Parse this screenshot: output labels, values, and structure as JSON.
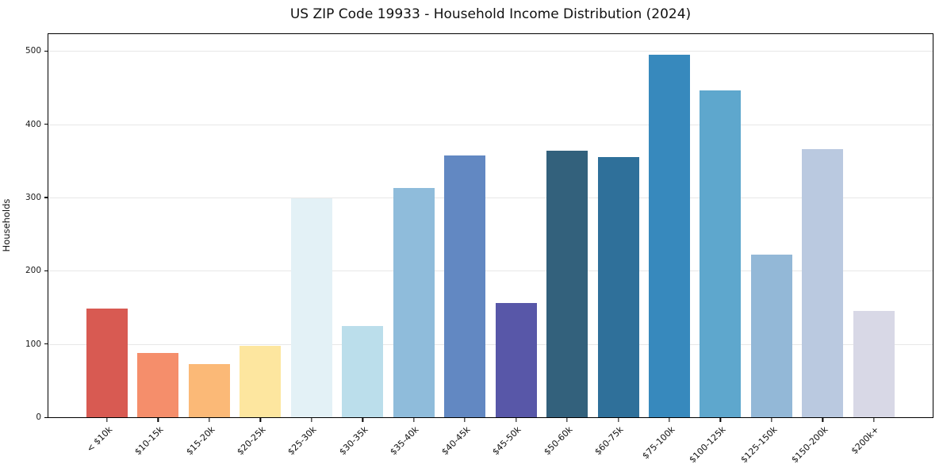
{
  "chart_data": {
    "type": "bar",
    "title": "US ZIP Code 19933 - Household Income Distribution (2024)",
    "xlabel": "",
    "ylabel": "Households",
    "categories": [
      "< $10k",
      "$10-15k",
      "$15-20k",
      "$20-25k",
      "$25-30k",
      "$30-35k",
      "$35-40k",
      "$40-45k",
      "$45-50k",
      "$50-60k",
      "$60-75k",
      "$75-100k",
      "$100-125k",
      "$125-150k",
      "$150-200k",
      "$200k+"
    ],
    "values": [
      148,
      88,
      73,
      97,
      299,
      124,
      313,
      357,
      156,
      364,
      355,
      495,
      446,
      222,
      366,
      145
    ],
    "bar_colors": [
      "#d85a52",
      "#f58e6b",
      "#fbb977",
      "#fde69f",
      "#e3f1f6",
      "#bbdeeb",
      "#8fbcdb",
      "#6288c2",
      "#5857a8",
      "#33617c",
      "#2f709a",
      "#3789bd",
      "#5ea7cd",
      "#93b8d7",
      "#bac9e0",
      "#d8d8e6"
    ],
    "yticks": [
      0,
      100,
      200,
      300,
      400,
      500
    ],
    "ylim": [
      0,
      523
    ],
    "grid": true,
    "grid_color": "#e7e7e7",
    "legend": "none",
    "background": "#ffffff"
  }
}
